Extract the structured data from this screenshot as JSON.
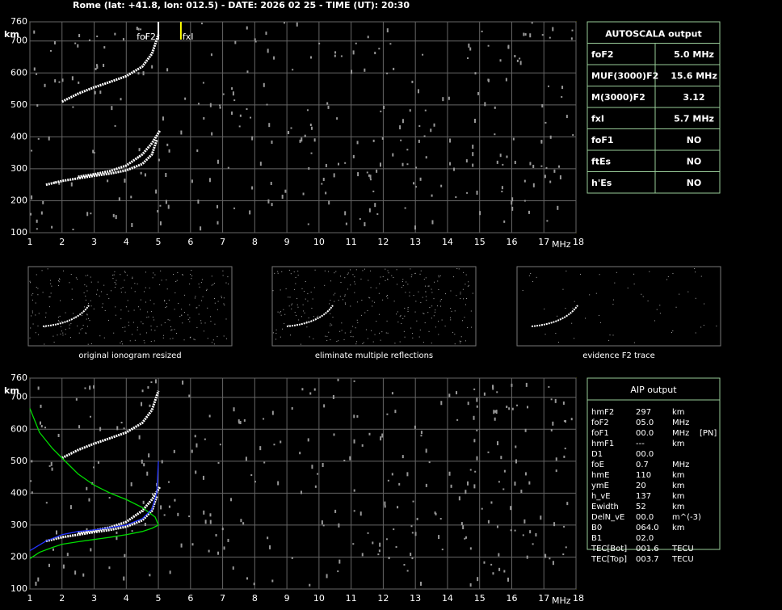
{
  "header": {
    "title": "Rome (lat: +41.8, lon: 012.5) - DATE: 2026 02 25 - TIME (UT): 20:30"
  },
  "chart_data": [
    {
      "type": "line",
      "xlabel": "MHz",
      "ylabel": "km",
      "xlim": [
        1,
        18
      ],
      "ylim": [
        100,
        760
      ],
      "xticks": [
        1,
        2,
        3,
        4,
        5,
        6,
        7,
        8,
        9,
        10,
        11,
        12,
        13,
        14,
        15,
        16,
        17,
        18
      ],
      "yticks": [
        100,
        200,
        300,
        400,
        500,
        600,
        700,
        760
      ],
      "grid": true,
      "series": [
        {
          "color": "#ffffff",
          "x": [
            1.5,
            2,
            2.5,
            3,
            3.5,
            4,
            4.5,
            4.8,
            4.95
          ],
          "values": [
            250,
            262,
            270,
            278,
            285,
            295,
            315,
            345,
            390
          ]
        },
        {
          "color": "#ffffff",
          "x": [
            2.5,
            3,
            3.5,
            4,
            4.5,
            4.8,
            5.05
          ],
          "values": [
            275,
            283,
            293,
            310,
            345,
            380,
            420
          ]
        },
        {
          "color": "#ffffff",
          "x": [
            2,
            2.5,
            3,
            3.5,
            4,
            4.5,
            4.8,
            5
          ],
          "values": [
            510,
            535,
            555,
            572,
            590,
            620,
            660,
            720
          ]
        }
      ],
      "annotations": [
        {
          "text": "foF2",
          "x": 5.0,
          "color": "#ffffff"
        },
        {
          "text": "fxI",
          "x": 5.7,
          "color": "#ffff00"
        }
      ]
    },
    {
      "type": "line",
      "xlabel": "MHz",
      "ylabel": "km",
      "xlim": [
        1,
        18
      ],
      "ylim": [
        100,
        760
      ],
      "xticks": [
        1,
        2,
        3,
        4,
        5,
        6,
        7,
        8,
        9,
        10,
        11,
        12,
        13,
        14,
        15,
        16,
        17,
        18
      ],
      "yticks": [
        100,
        200,
        300,
        400,
        500,
        600,
        700,
        760
      ],
      "grid": true,
      "series": [
        {
          "color": "#ffffff",
          "x": [
            1.5,
            2,
            2.5,
            3,
            3.5,
            4,
            4.5,
            4.8,
            4.95
          ],
          "values": [
            250,
            262,
            270,
            278,
            285,
            295,
            315,
            345,
            390
          ]
        },
        {
          "color": "#ffffff",
          "x": [
            2.5,
            3,
            3.5,
            4,
            4.5,
            4.8,
            5.05
          ],
          "values": [
            275,
            283,
            293,
            310,
            345,
            380,
            420
          ]
        },
        {
          "color": "#ffffff",
          "x": [
            2,
            2.5,
            3,
            3.5,
            4,
            4.5,
            4.8,
            5
          ],
          "values": [
            510,
            535,
            555,
            572,
            590,
            620,
            660,
            720
          ]
        },
        {
          "color": "#00dd00",
          "x": [
            1,
            1.3,
            1.7,
            2,
            2.5,
            3,
            3.5,
            4,
            4.5,
            4.9,
            5
          ],
          "values": [
            665,
            590,
            540,
            510,
            460,
            425,
            400,
            380,
            355,
            325,
            300
          ]
        },
        {
          "color": "#00dd00",
          "x": [
            1,
            1.3,
            1.7,
            2,
            2.5,
            3,
            3.5,
            4,
            4.5,
            4.8,
            5
          ],
          "values": [
            195,
            215,
            230,
            240,
            248,
            255,
            262,
            270,
            280,
            290,
            300
          ]
        },
        {
          "color": "#2233ff",
          "x": [
            1,
            1.5,
            2,
            2.5,
            3,
            3.5,
            4,
            4.5,
            4.8,
            4.95,
            5
          ],
          "values": [
            220,
            250,
            270,
            280,
            285,
            292,
            300,
            320,
            350,
            400,
            500
          ]
        }
      ]
    }
  ],
  "thumbnails": [
    {
      "caption": "original ionogram resized"
    },
    {
      "caption": "eliminate multiple reflections"
    },
    {
      "caption": "evidence F2 trace"
    }
  ],
  "autoscala": {
    "title": "AUTOSCALA output",
    "rows": [
      {
        "cells": [
          "foF2",
          "5.0 MHz"
        ],
        "color": "#ffffff"
      },
      {
        "cells": [
          "MUF(3000)F2",
          "15.6 MHz"
        ],
        "color": "#ffffff"
      },
      {
        "cells": [
          "M(3000)F2",
          "3.12"
        ],
        "color": "#ffffff"
      },
      {
        "cells": [
          "fxI",
          "5.7 MHz"
        ],
        "color": "#ffff00"
      },
      {
        "cells": [
          "foF1",
          "NO"
        ],
        "color": "#ff2020"
      },
      {
        "cells": [
          "ftEs",
          "NO"
        ],
        "color": "#3388ff"
      },
      {
        "cells": [
          "h'Es",
          "NO"
        ],
        "color": "#ffffff"
      }
    ]
  },
  "aip": {
    "title": "AIP output",
    "rows": [
      [
        "hmF2",
        "297",
        "km"
      ],
      [
        "foF2",
        "05.0",
        "MHz"
      ],
      [
        "foF1",
        "00.0",
        "MHz",
        "[PN]"
      ],
      [
        "hmF1",
        "---",
        "km"
      ],
      [
        "D1",
        "00.0"
      ],
      [
        "foE",
        "0.7",
        "MHz"
      ],
      [
        "hmE",
        "110",
        "km"
      ],
      [
        "ymE",
        "20",
        "km"
      ],
      [
        "h_vE",
        "137",
        "km"
      ],
      [
        "Ewidth",
        "52",
        "km"
      ],
      [
        "DelN_vE",
        "00.0",
        "m^(-3)"
      ],
      [
        "B0",
        "064.0",
        "km"
      ],
      [
        "B1",
        "02.0"
      ],
      [
        "TEC[Bot]",
        "001.6",
        "TECU"
      ],
      [
        "TEC[Top]",
        "003.7",
        "TECU"
      ]
    ]
  }
}
